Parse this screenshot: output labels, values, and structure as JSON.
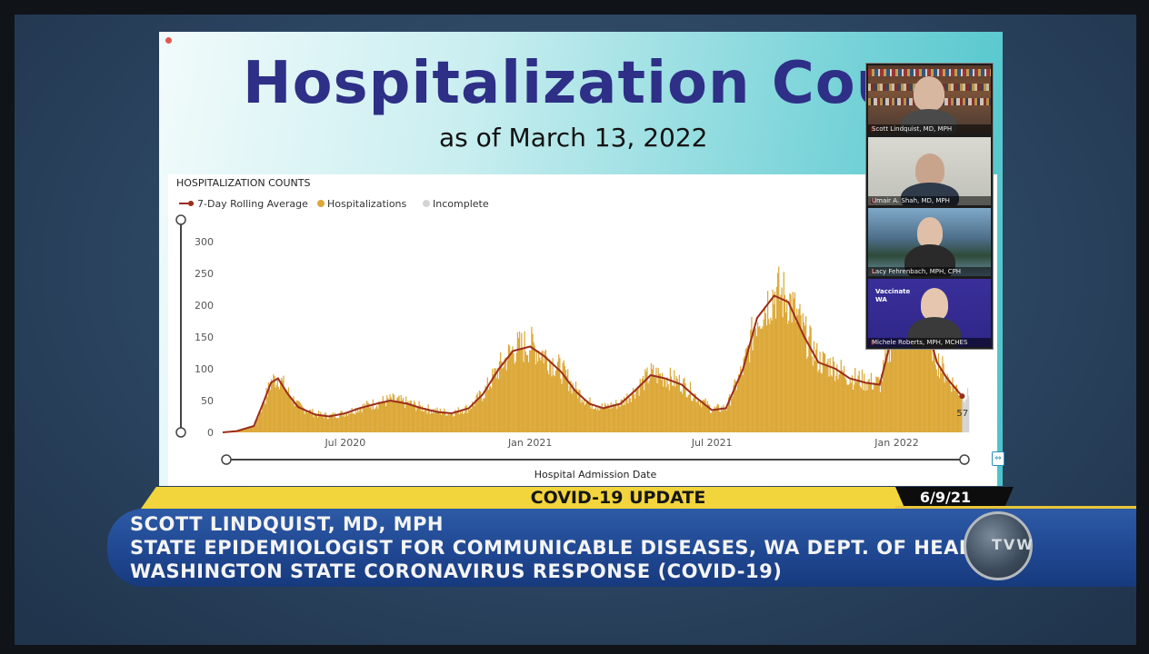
{
  "slide": {
    "title": "Hospitalization Coun",
    "subtitle": "as of March 13, 2022"
  },
  "chart_data": {
    "type": "bar",
    "title": "HOSPITALIZATION COUNTS",
    "xlabel": "Hospital Admission Date",
    "ylabel": "",
    "ylim": [
      0,
      300
    ],
    "yticks": [
      0,
      50,
      100,
      150,
      200,
      250,
      300
    ],
    "xticks": [
      "Jul 2020",
      "Jan 2021",
      "Jul 2021",
      "Jan 2022"
    ],
    "legend": [
      "7-Day Rolling Average",
      "Hospitalizations",
      "Incomplete"
    ],
    "legend_position": "top-left",
    "grid": false,
    "last_value_label": "57",
    "dates": [
      "2020-03-01",
      "2020-03-15",
      "2020-04-01",
      "2020-04-10",
      "2020-04-18",
      "2020-04-25",
      "2020-05-05",
      "2020-05-15",
      "2020-06-01",
      "2020-06-15",
      "2020-07-01",
      "2020-07-15",
      "2020-08-01",
      "2020-08-15",
      "2020-09-01",
      "2020-09-15",
      "2020-10-01",
      "2020-10-15",
      "2020-11-01",
      "2020-11-15",
      "2020-12-01",
      "2020-12-15",
      "2021-01-01",
      "2021-01-15",
      "2021-02-01",
      "2021-02-15",
      "2021-03-01",
      "2021-03-15",
      "2021-04-01",
      "2021-04-15",
      "2021-05-01",
      "2021-05-15",
      "2021-06-01",
      "2021-06-15",
      "2021-07-01",
      "2021-07-15",
      "2021-08-01",
      "2021-08-15",
      "2021-09-01",
      "2021-09-15",
      "2021-10-01",
      "2021-10-15",
      "2021-11-01",
      "2021-11-15",
      "2021-12-01",
      "2021-12-15",
      "2022-01-01",
      "2022-01-10",
      "2022-01-20",
      "2022-02-01",
      "2022-02-10",
      "2022-02-20",
      "2022-03-01",
      "2022-03-07"
    ],
    "series": [
      {
        "name": "7-Day Rolling Average",
        "color": "#9b2e1c",
        "values": [
          0,
          2,
          10,
          45,
          78,
          85,
          60,
          40,
          28,
          25,
          30,
          38,
          45,
          50,
          45,
          38,
          32,
          30,
          38,
          60,
          100,
          128,
          135,
          120,
          95,
          65,
          45,
          38,
          45,
          65,
          90,
          85,
          75,
          55,
          35,
          38,
          100,
          180,
          215,
          205,
          150,
          110,
          100,
          85,
          78,
          75,
          180,
          230,
          220,
          160,
          110,
          85,
          68,
          57
        ]
      },
      {
        "name": "Hospitalizations",
        "color": "#dca838"
      },
      {
        "name": "Incomplete",
        "color": "#d4d4d4"
      }
    ]
  },
  "participants": [
    {
      "name": "Scott Lindquist, MD, MPH"
    },
    {
      "name": "Umair A. Shah, MD, MPH"
    },
    {
      "name": "Lacy Fehrenbach, MPH, CPH"
    },
    {
      "name": "Michele Roberts, MPH, MCHES"
    }
  ],
  "participant_badge": {
    "line1": "Vaccinate",
    "line2": "WA"
  },
  "banner": {
    "label": "COVID-19 UPDATE",
    "date": "6/9/21"
  },
  "lower_third": {
    "line1": "SCOTT LINDQUIST, MD, MPH",
    "line2": "STATE EPIDEMIOLOGIST FOR COMMUNICABLE DISEASES, WA DEPT. OF HEALTH",
    "line3": "WASHINGTON STATE CORONAVIRUS RESPONSE (COVID-19)"
  },
  "logo": {
    "text": "TVW"
  },
  "colors": {
    "title": "#2e2f86",
    "bars": "#dca838",
    "rolling_avg": "#9b2e1c",
    "banner_yellow": "#f2d53c",
    "band_blue": "#1f4690"
  }
}
